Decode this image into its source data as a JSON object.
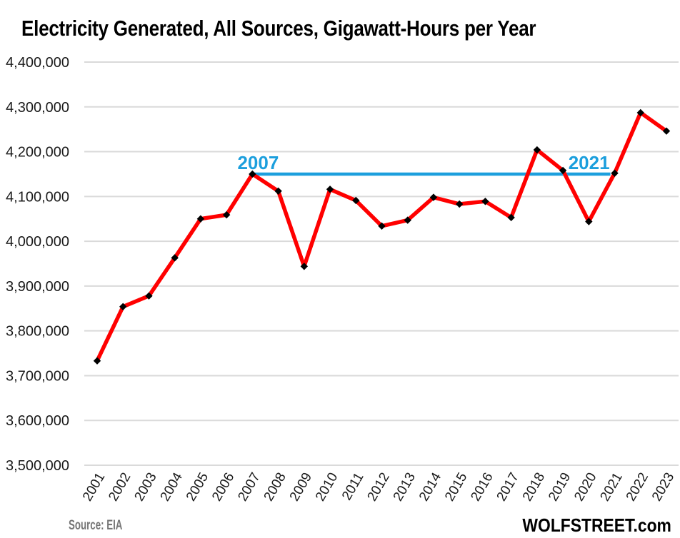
{
  "page": {
    "title": "Electricity Generated, All Sources, Gigawatt-Hours per Year",
    "source_label": "Source: EIA",
    "brand_label": "WOLFSTREET.com"
  },
  "chart_data": {
    "type": "line",
    "title": "Electricity Generated, All Sources, Gigawatt-Hours per Year",
    "xlabel": "",
    "ylabel": "",
    "legend": "none",
    "grid": "horizontal",
    "ylim": [
      3500000,
      4400000
    ],
    "ytick_step": 100000,
    "x": [
      2001,
      2002,
      2003,
      2004,
      2005,
      2006,
      2007,
      2008,
      2009,
      2010,
      2011,
      2012,
      2013,
      2014,
      2015,
      2016,
      2017,
      2018,
      2019,
      2020,
      2021,
      2022,
      2023
    ],
    "values": [
      3733000,
      3854000,
      3878000,
      3963000,
      4050000,
      4059000,
      4150000,
      4112000,
      3944000,
      4116000,
      4091000,
      4034000,
      4047000,
      4098000,
      4083000,
      4089000,
      4053000,
      4204000,
      4158000,
      4044000,
      4152000,
      4287000,
      4246000
    ],
    "colors": {
      "line": "#FF0000",
      "marker": "#000000",
      "grid": "#DADADA",
      "text": "#1A1A1A"
    },
    "annotations": {
      "reference_line": {
        "value": 4150000,
        "from_x": 2007,
        "to_x": 2021,
        "color": "#1C9FDD",
        "labels": [
          {
            "text": "2007"
          },
          {
            "text": "2021"
          }
        ]
      }
    }
  }
}
